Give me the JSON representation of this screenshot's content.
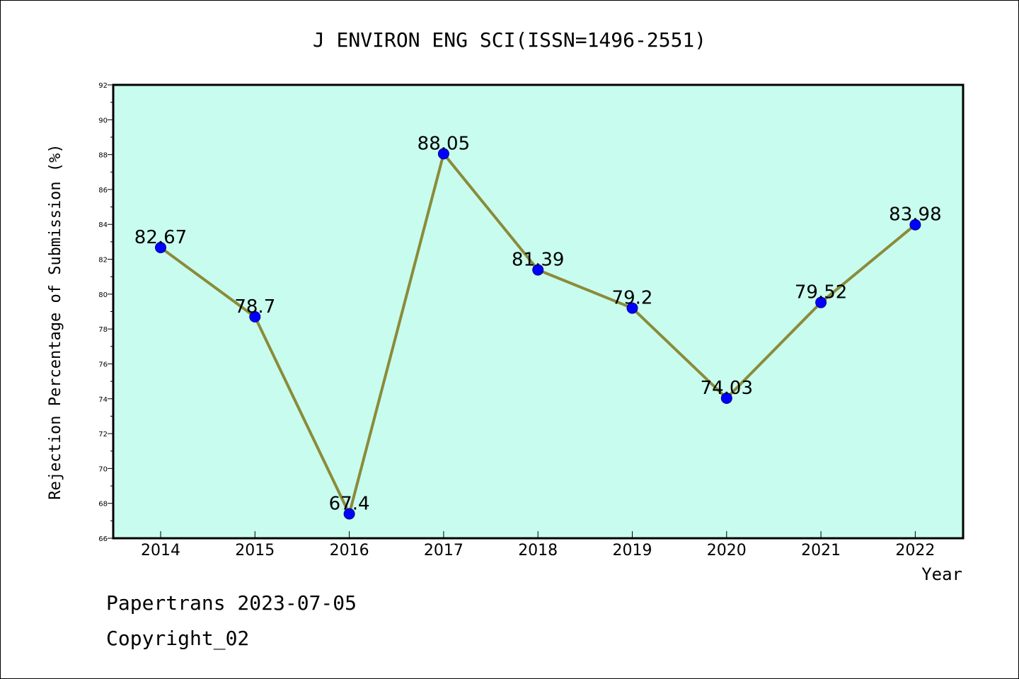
{
  "chart_data": {
    "type": "line",
    "title": "J ENVIRON ENG SCI(ISSN=1496-2551)",
    "xlabel": "Year",
    "ylabel": "Rejection Percentage of Submission (%)",
    "categories": [
      "2014",
      "2015",
      "2016",
      "2017",
      "2018",
      "2019",
      "2020",
      "2021",
      "2022"
    ],
    "values": [
      82.67,
      78.7,
      67.4,
      88.05,
      81.39,
      79.2,
      74.03,
      79.52,
      83.98
    ],
    "data_labels": [
      "82.67",
      "78.7",
      "67.4",
      "88.05",
      "81.39",
      "79.2",
      "74.03",
      "79.52",
      "83.98"
    ],
    "ylim": [
      66,
      92
    ],
    "yticks": [
      66,
      68,
      70,
      72,
      74,
      76,
      78,
      80,
      82,
      84,
      86,
      88,
      90,
      92
    ],
    "grid": false,
    "legend": "none",
    "colors": {
      "plot_background": "#c8fcee",
      "line": "#8b8b3a",
      "marker": "#0000ff"
    }
  },
  "footer": {
    "line1": "Papertrans 2023-07-05",
    "line2": "Copyright_02"
  }
}
